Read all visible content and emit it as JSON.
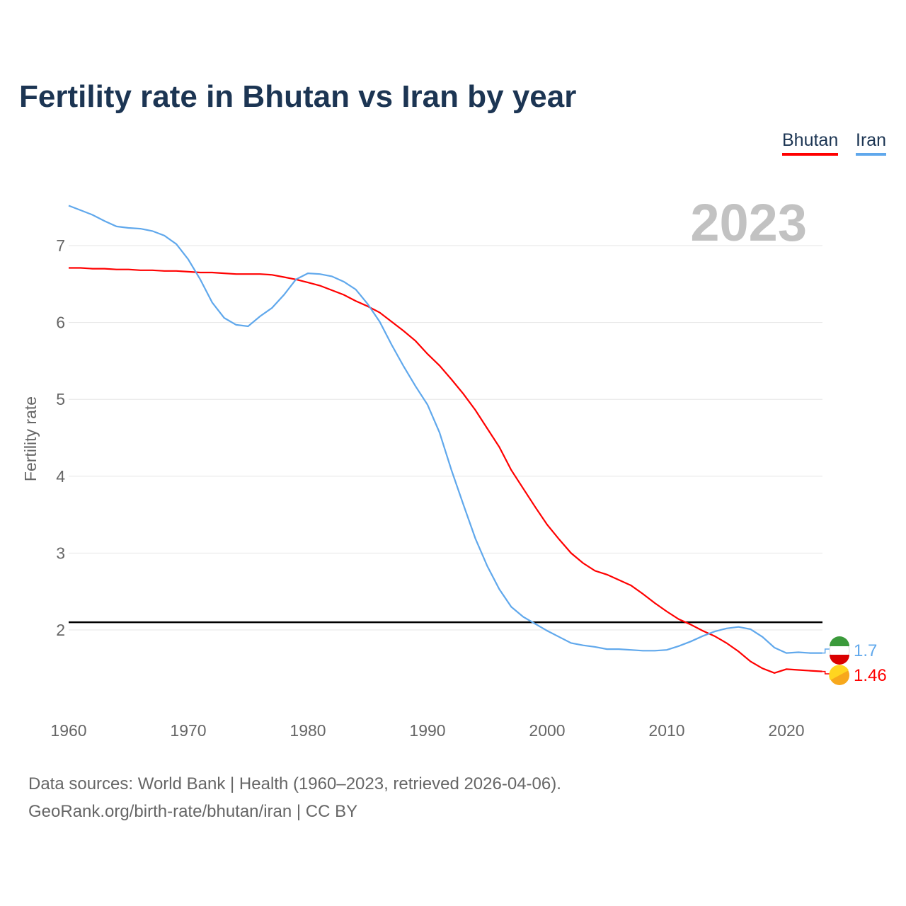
{
  "title": "Fertility rate in Bhutan vs Iran by year",
  "source_line1": "Data sources: World Bank | Health (1960–2023, retrieved 2026-04-06).",
  "source_line2": "GeoRank.org/birth-rate/bhutan/iran | CC BY",
  "chart_data": {
    "type": "line",
    "title": "Fertility rate in Bhutan vs Iran by year",
    "xlabel": "",
    "ylabel": "Fertility rate",
    "year_label": "2023",
    "xlim": [
      1960,
      2023
    ],
    "ylim": [
      1.2,
      7.6
    ],
    "xticks": [
      1960,
      1970,
      1980,
      1990,
      2000,
      2010,
      2020
    ],
    "yticks": [
      2,
      3,
      4,
      5,
      6,
      7
    ],
    "grid": true,
    "legend": "top-right",
    "reference_line": 2.1,
    "x_start": 1960,
    "series": [
      {
        "name": "Bhutan",
        "color": "#ff0000",
        "end_label": "1.46",
        "icon": "bhutan-flag-icon",
        "values": [
          6.71,
          6.71,
          6.7,
          6.7,
          6.69,
          6.69,
          6.68,
          6.68,
          6.67,
          6.67,
          6.66,
          6.65,
          6.65,
          6.64,
          6.63,
          6.63,
          6.63,
          6.62,
          6.59,
          6.56,
          6.52,
          6.48,
          6.42,
          6.36,
          6.28,
          6.21,
          6.13,
          6.01,
          5.89,
          5.76,
          5.59,
          5.44,
          5.26,
          5.07,
          4.86,
          4.62,
          4.38,
          4.08,
          3.84,
          3.6,
          3.37,
          3.18,
          3.0,
          2.87,
          2.77,
          2.72,
          2.65,
          2.58,
          2.47,
          2.35,
          2.24,
          2.14,
          2.07,
          1.99,
          1.92,
          1.83,
          1.72,
          1.59,
          1.5,
          1.44,
          1.49,
          1.48,
          1.47,
          1.46
        ]
      },
      {
        "name": "Iran",
        "color": "#60a8ec",
        "end_label": "1.7",
        "icon": "iran-flag-icon",
        "values": [
          7.52,
          7.46,
          7.4,
          7.32,
          7.25,
          7.23,
          7.22,
          7.19,
          7.13,
          7.02,
          6.82,
          6.56,
          6.26,
          6.06,
          5.97,
          5.95,
          6.08,
          6.19,
          6.36,
          6.56,
          6.64,
          6.63,
          6.6,
          6.53,
          6.43,
          6.24,
          6.01,
          5.71,
          5.43,
          5.17,
          4.93,
          4.57,
          4.08,
          3.63,
          3.19,
          2.83,
          2.53,
          2.3,
          2.17,
          2.08,
          1.99,
          1.91,
          1.83,
          1.8,
          1.78,
          1.75,
          1.75,
          1.74,
          1.73,
          1.73,
          1.74,
          1.79,
          1.85,
          1.92,
          1.98,
          2.02,
          2.04,
          2.01,
          1.91,
          1.77,
          1.7,
          1.71,
          1.7,
          1.7
        ]
      }
    ]
  }
}
